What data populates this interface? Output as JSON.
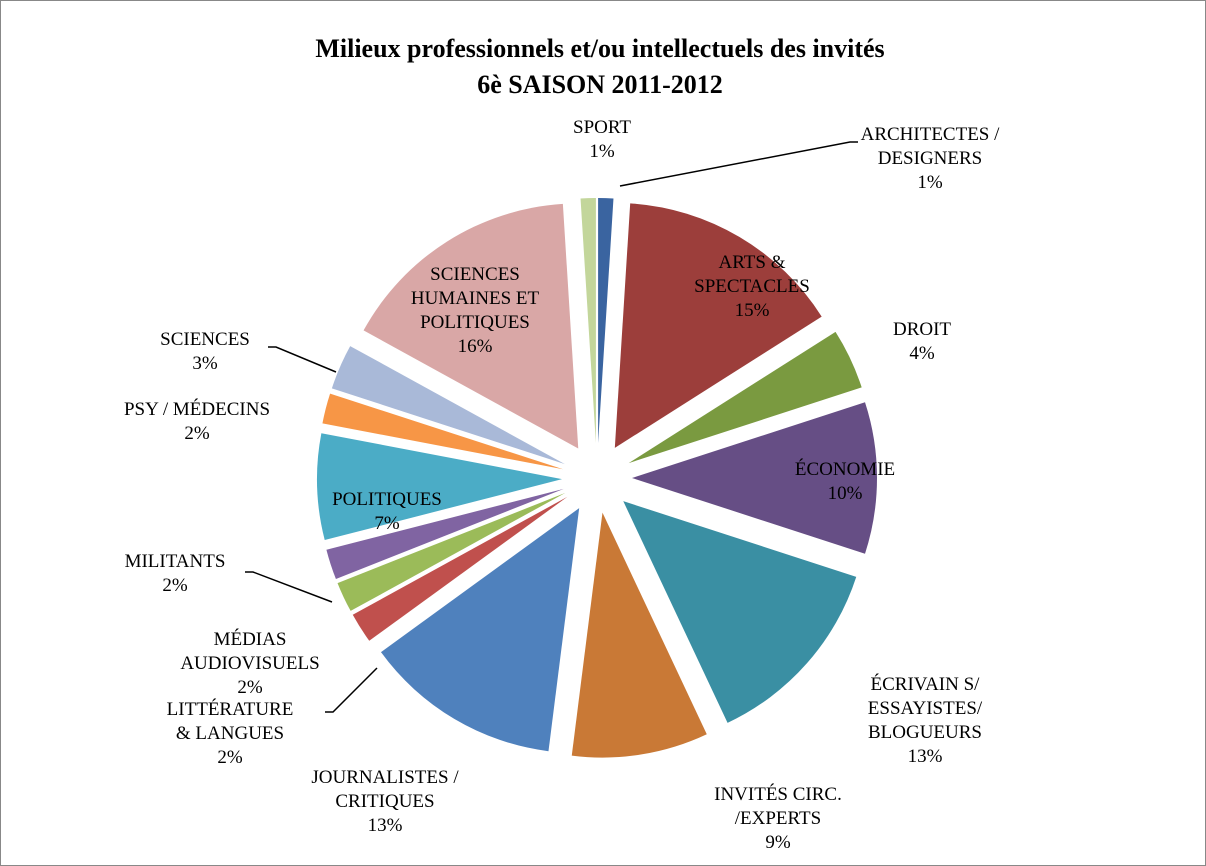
{
  "chart_data": {
    "type": "pie",
    "title": "Milieux professionnels et/ou intellectuels des invités",
    "subtitle": "6è SAISON 2011-2012",
    "categories": [
      "ARCHITECTES /\nDESIGNERS",
      "ARTS &\nSPECTACLES",
      "DROIT",
      "ÉCONOMIE",
      "ÉCRIVAIN S/\nESSAYISTES/\nBLOGUEURS",
      "INVITÉS CIRC.\n/EXPERTS",
      "JOURNALISTES /\nCRITIQUES",
      "LITTÉRATURE\n& LANGUES",
      "MÉDIAS\nAUDIOVISUELS",
      "MILITANTS",
      "POLITIQUES",
      "PSY / MÉDECINS",
      "SCIENCES",
      "SCIENCES\nHUMAINES ET\nPOLITIQUES",
      "SPORT"
    ],
    "values": [
      1,
      15,
      4,
      10,
      13,
      9,
      13,
      2,
      2,
      2,
      7,
      2,
      3,
      16,
      1
    ],
    "value_labels": [
      "1%",
      "15%",
      "4%",
      "10%",
      "13%",
      "9%",
      "13%",
      "2%",
      "2%",
      "2%",
      "7%",
      "2%",
      "3%",
      "16%",
      "1%"
    ],
    "colors": [
      "#3a64a0",
      "#9c3e3b",
      "#7a9a40",
      "#664e85",
      "#3a8fa3",
      "#c97936",
      "#4f81bd",
      "#c0504d",
      "#9bbb59",
      "#8064a2",
      "#4bacc6",
      "#f79646",
      "#a9b9d8",
      "#d9a7a6",
      "#c3d69b"
    ]
  }
}
